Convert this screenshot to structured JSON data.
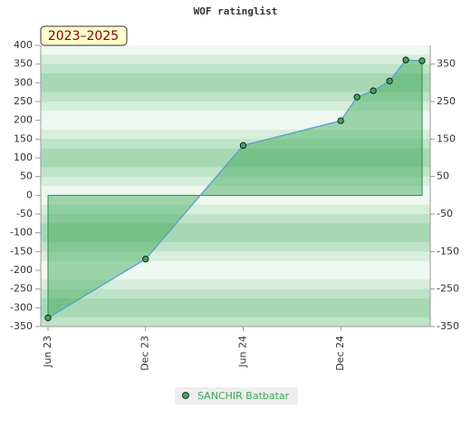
{
  "chart_data": {
    "type": "area",
    "title": "WOF ratinglist",
    "annotation": "2023–2025",
    "x": [
      "2023-06",
      "2023-12",
      "2024-06",
      "2024-12",
      "2025-01",
      "2025-02",
      "2025-03",
      "2025-04",
      "2025-05"
    ],
    "xlim": [
      "2023-06",
      "2025-05"
    ],
    "xticks": [
      {
        "value": "2023-06",
        "label": "Jun 23"
      },
      {
        "value": "2023-12",
        "label": "Dec 23"
      },
      {
        "value": "2024-06",
        "label": "Jun 24"
      },
      {
        "value": "2024-12",
        "label": "Dec 24"
      }
    ],
    "series": [
      {
        "name": "SANCHIR Batbatar",
        "color": "#3aa757",
        "values": [
          -327,
          -170,
          133,
          199,
          262,
          279,
          305,
          361,
          359
        ]
      }
    ],
    "ylim": [
      -350,
      400
    ],
    "yticks": [
      -350,
      -300,
      -250,
      -200,
      -150,
      -100,
      -50,
      0,
      50,
      100,
      150,
      200,
      250,
      300,
      350,
      400
    ],
    "y2lim": [
      -350,
      400
    ],
    "y2ticks": [
      -350,
      -250,
      -150,
      -50,
      50,
      150,
      250,
      350
    ]
  }
}
